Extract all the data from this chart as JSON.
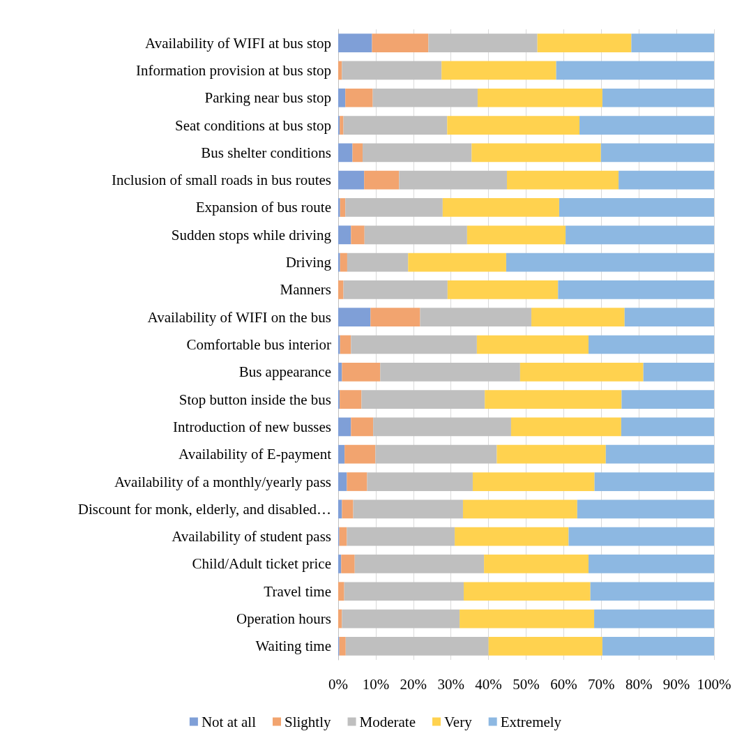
{
  "chart_data": {
    "type": "bar",
    "orientation": "horizontal",
    "stacked": true,
    "categories": [
      "Availability of WIFI at bus stop",
      "Information provision at bus stop",
      "Parking near bus stop",
      "Seat conditions at bus stop",
      "Bus shelter conditions",
      "Inclusion of small roads in bus routes",
      "Expansion of bus route",
      "Sudden stops while driving",
      "Driving",
      "Manners",
      "Availability of WIFI on the bus",
      "Comfortable bus interior",
      "Bus appearance",
      "Stop button inside the bus",
      "Introduction of new busses",
      "Availability of E-payment",
      "Availability of a monthly/yearly pass",
      "Discount for monk, elderly, and disabled…",
      "Availability of student pass",
      "Child/Adult ticket price",
      "Travel time",
      "Operation hours",
      "Waiting time"
    ],
    "series": [
      {
        "name": "Not at all",
        "color": "#7f9fd7",
        "values": [
          9,
          0,
          1.9,
          0.4,
          3.8,
          6.9,
          0.5,
          3.4,
          0.5,
          0,
          8.6,
          0.5,
          1,
          0.4,
          3.4,
          1.7,
          2.3,
          1,
          0.3,
          0.8,
          0,
          0,
          0.3
        ]
      },
      {
        "name": "Slightly",
        "color": "#f2a46f",
        "values": [
          15,
          1,
          7.3,
          1,
          2.7,
          9.3,
          1.4,
          3.6,
          1.9,
          1.4,
          13.2,
          2.9,
          10.2,
          5.8,
          5.9,
          8.2,
          5.4,
          3,
          2,
          3.6,
          1.6,
          1,
          1.7
        ]
      },
      {
        "name": "Moderate",
        "color": "#bfbfbf",
        "values": [
          29,
          26.5,
          27.9,
          27.6,
          29,
          28.7,
          25.9,
          27.3,
          16.2,
          27.7,
          29.6,
          33.5,
          37.2,
          32.8,
          36.7,
          32.3,
          28.1,
          29.2,
          28.7,
          34.4,
          31.8,
          31.3,
          38
        ]
      },
      {
        "name": "Very",
        "color": "#ffd24f",
        "values": [
          25,
          30.5,
          33.2,
          35.2,
          34.4,
          29.7,
          31,
          26.2,
          26.1,
          29.4,
          24.8,
          29.7,
          32.8,
          36.4,
          29.3,
          29,
          32.4,
          30.4,
          30.3,
          27.8,
          33.7,
          35.8,
          30.3
        ]
      },
      {
        "name": "Extremely",
        "color": "#8db8e2",
        "values": [
          22,
          42,
          29.7,
          35.8,
          30.1,
          25.4,
          41.2,
          39.5,
          55.3,
          41.5,
          23.8,
          33.4,
          18.8,
          24.6,
          24.7,
          28.8,
          31.8,
          36.4,
          38.7,
          33.4,
          32.9,
          31.9,
          29.7
        ]
      }
    ],
    "xlim": [
      0,
      100
    ],
    "xticks": [
      {
        "value": 0,
        "label": "0%"
      },
      {
        "value": 10,
        "label": "10%"
      },
      {
        "value": 20,
        "label": "20%"
      },
      {
        "value": 30,
        "label": "30%"
      },
      {
        "value": 40,
        "label": "40%"
      },
      {
        "value": 50,
        "label": "50%"
      },
      {
        "value": 60,
        "label": "60%"
      },
      {
        "value": 70,
        "label": "70%"
      },
      {
        "value": 80,
        "label": "80%"
      },
      {
        "value": 90,
        "label": "90%"
      },
      {
        "value": 100,
        "label": "100%"
      }
    ],
    "grid": "x",
    "legend": "bottom"
  }
}
